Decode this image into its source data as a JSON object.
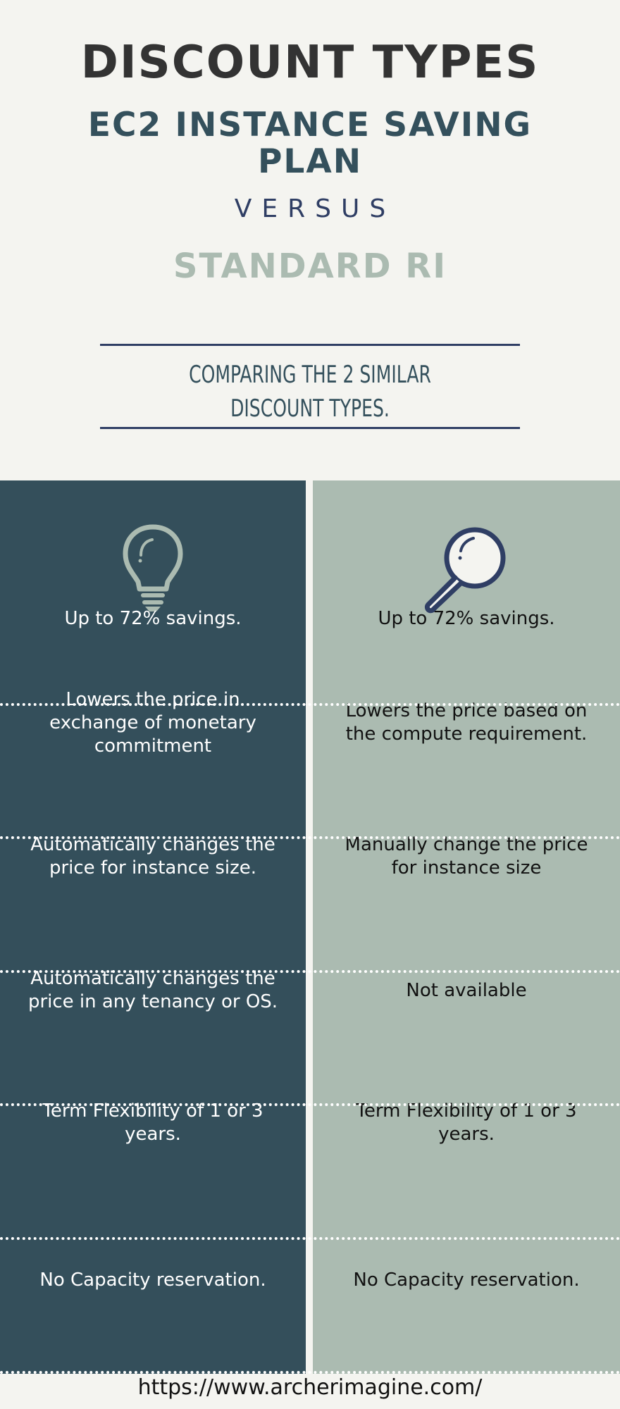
{
  "header": {
    "title": "DISCOUNT TYPES",
    "subtitle": "EC2 INSTANCE SAVING PLAN",
    "versus": "VERSUS",
    "compared": "STANDARD RI",
    "description": "COMPARING THE 2 SIMILAR DISCOUNT TYPES."
  },
  "colors": {
    "dark_teal": "#344f5b",
    "sage": "#abbbb1",
    "navy": "#2f3e64",
    "background": "#f4f4f0"
  },
  "left_column": {
    "icon": "lightbulb-icon",
    "rows": [
      "Up to 72% savings.",
      "Lowers the price in exchange of monetary commitment",
      "Automatically changes the price for instance size.",
      "Automatically changes the price in any tenancy or OS.",
      "Term Flexibility of 1 or 3 years.",
      "No Capacity reservation."
    ]
  },
  "right_column": {
    "icon": "magnifying-glass-icon",
    "rows": [
      "Up to 72% savings.",
      "Lowers the price based on the compute requirement.",
      "Manually change the price for instance size",
      "Not available",
      "Term Flexibility of 1 or 3 years.",
      "No Capacity reservation."
    ]
  },
  "footer": {
    "url": "https://www.archerimagine.com/"
  }
}
